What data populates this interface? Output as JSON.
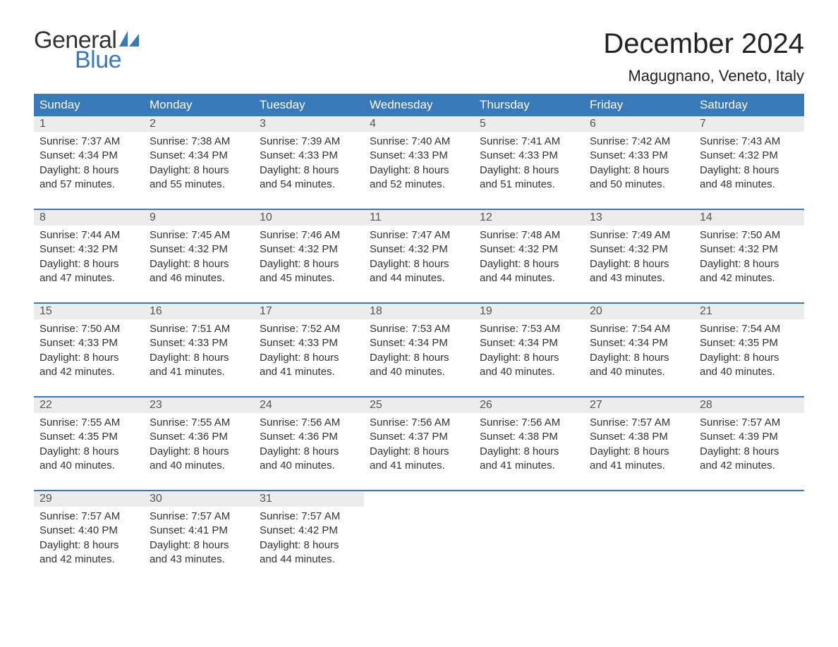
{
  "brand": {
    "word1": "General",
    "word2": "Blue"
  },
  "title": "December 2024",
  "location": "Magugnano, Veneto, Italy",
  "colors": {
    "header_bg": "#3a79b7",
    "header_text": "#ffffff",
    "daynum_bg": "#ececec",
    "daynum_text": "#555555",
    "body_text": "#333333",
    "accent_line": "#3a79b7",
    "page_bg": "#ffffff",
    "logo_blue": "#3a79b7"
  },
  "typography": {
    "title_fontsize_pt": 30,
    "location_fontsize_pt": 16,
    "header_fontsize_pt": 13,
    "daynum_fontsize_pt": 12,
    "detail_fontsize_pt": 11,
    "font_family": "Arial"
  },
  "day_headers": [
    "Sunday",
    "Monday",
    "Tuesday",
    "Wednesday",
    "Thursday",
    "Friday",
    "Saturday"
  ],
  "weeks": [
    [
      {
        "num": "1",
        "sunrise": "Sunrise: 7:37 AM",
        "sunset": "Sunset: 4:34 PM",
        "d1": "Daylight: 8 hours",
        "d2": "and 57 minutes."
      },
      {
        "num": "2",
        "sunrise": "Sunrise: 7:38 AM",
        "sunset": "Sunset: 4:34 PM",
        "d1": "Daylight: 8 hours",
        "d2": "and 55 minutes."
      },
      {
        "num": "3",
        "sunrise": "Sunrise: 7:39 AM",
        "sunset": "Sunset: 4:33 PM",
        "d1": "Daylight: 8 hours",
        "d2": "and 54 minutes."
      },
      {
        "num": "4",
        "sunrise": "Sunrise: 7:40 AM",
        "sunset": "Sunset: 4:33 PM",
        "d1": "Daylight: 8 hours",
        "d2": "and 52 minutes."
      },
      {
        "num": "5",
        "sunrise": "Sunrise: 7:41 AM",
        "sunset": "Sunset: 4:33 PM",
        "d1": "Daylight: 8 hours",
        "d2": "and 51 minutes."
      },
      {
        "num": "6",
        "sunrise": "Sunrise: 7:42 AM",
        "sunset": "Sunset: 4:33 PM",
        "d1": "Daylight: 8 hours",
        "d2": "and 50 minutes."
      },
      {
        "num": "7",
        "sunrise": "Sunrise: 7:43 AM",
        "sunset": "Sunset: 4:32 PM",
        "d1": "Daylight: 8 hours",
        "d2": "and 48 minutes."
      }
    ],
    [
      {
        "num": "8",
        "sunrise": "Sunrise: 7:44 AM",
        "sunset": "Sunset: 4:32 PM",
        "d1": "Daylight: 8 hours",
        "d2": "and 47 minutes."
      },
      {
        "num": "9",
        "sunrise": "Sunrise: 7:45 AM",
        "sunset": "Sunset: 4:32 PM",
        "d1": "Daylight: 8 hours",
        "d2": "and 46 minutes."
      },
      {
        "num": "10",
        "sunrise": "Sunrise: 7:46 AM",
        "sunset": "Sunset: 4:32 PM",
        "d1": "Daylight: 8 hours",
        "d2": "and 45 minutes."
      },
      {
        "num": "11",
        "sunrise": "Sunrise: 7:47 AM",
        "sunset": "Sunset: 4:32 PM",
        "d1": "Daylight: 8 hours",
        "d2": "and 44 minutes."
      },
      {
        "num": "12",
        "sunrise": "Sunrise: 7:48 AM",
        "sunset": "Sunset: 4:32 PM",
        "d1": "Daylight: 8 hours",
        "d2": "and 44 minutes."
      },
      {
        "num": "13",
        "sunrise": "Sunrise: 7:49 AM",
        "sunset": "Sunset: 4:32 PM",
        "d1": "Daylight: 8 hours",
        "d2": "and 43 minutes."
      },
      {
        "num": "14",
        "sunrise": "Sunrise: 7:50 AM",
        "sunset": "Sunset: 4:32 PM",
        "d1": "Daylight: 8 hours",
        "d2": "and 42 minutes."
      }
    ],
    [
      {
        "num": "15",
        "sunrise": "Sunrise: 7:50 AM",
        "sunset": "Sunset: 4:33 PM",
        "d1": "Daylight: 8 hours",
        "d2": "and 42 minutes."
      },
      {
        "num": "16",
        "sunrise": "Sunrise: 7:51 AM",
        "sunset": "Sunset: 4:33 PM",
        "d1": "Daylight: 8 hours",
        "d2": "and 41 minutes."
      },
      {
        "num": "17",
        "sunrise": "Sunrise: 7:52 AM",
        "sunset": "Sunset: 4:33 PM",
        "d1": "Daylight: 8 hours",
        "d2": "and 41 minutes."
      },
      {
        "num": "18",
        "sunrise": "Sunrise: 7:53 AM",
        "sunset": "Sunset: 4:34 PM",
        "d1": "Daylight: 8 hours",
        "d2": "and 40 minutes."
      },
      {
        "num": "19",
        "sunrise": "Sunrise: 7:53 AM",
        "sunset": "Sunset: 4:34 PM",
        "d1": "Daylight: 8 hours",
        "d2": "and 40 minutes."
      },
      {
        "num": "20",
        "sunrise": "Sunrise: 7:54 AM",
        "sunset": "Sunset: 4:34 PM",
        "d1": "Daylight: 8 hours",
        "d2": "and 40 minutes."
      },
      {
        "num": "21",
        "sunrise": "Sunrise: 7:54 AM",
        "sunset": "Sunset: 4:35 PM",
        "d1": "Daylight: 8 hours",
        "d2": "and 40 minutes."
      }
    ],
    [
      {
        "num": "22",
        "sunrise": "Sunrise: 7:55 AM",
        "sunset": "Sunset: 4:35 PM",
        "d1": "Daylight: 8 hours",
        "d2": "and 40 minutes."
      },
      {
        "num": "23",
        "sunrise": "Sunrise: 7:55 AM",
        "sunset": "Sunset: 4:36 PM",
        "d1": "Daylight: 8 hours",
        "d2": "and 40 minutes."
      },
      {
        "num": "24",
        "sunrise": "Sunrise: 7:56 AM",
        "sunset": "Sunset: 4:36 PM",
        "d1": "Daylight: 8 hours",
        "d2": "and 40 minutes."
      },
      {
        "num": "25",
        "sunrise": "Sunrise: 7:56 AM",
        "sunset": "Sunset: 4:37 PM",
        "d1": "Daylight: 8 hours",
        "d2": "and 41 minutes."
      },
      {
        "num": "26",
        "sunrise": "Sunrise: 7:56 AM",
        "sunset": "Sunset: 4:38 PM",
        "d1": "Daylight: 8 hours",
        "d2": "and 41 minutes."
      },
      {
        "num": "27",
        "sunrise": "Sunrise: 7:57 AM",
        "sunset": "Sunset: 4:38 PM",
        "d1": "Daylight: 8 hours",
        "d2": "and 41 minutes."
      },
      {
        "num": "28",
        "sunrise": "Sunrise: 7:57 AM",
        "sunset": "Sunset: 4:39 PM",
        "d1": "Daylight: 8 hours",
        "d2": "and 42 minutes."
      }
    ],
    [
      {
        "num": "29",
        "sunrise": "Sunrise: 7:57 AM",
        "sunset": "Sunset: 4:40 PM",
        "d1": "Daylight: 8 hours",
        "d2": "and 42 minutes."
      },
      {
        "num": "30",
        "sunrise": "Sunrise: 7:57 AM",
        "sunset": "Sunset: 4:41 PM",
        "d1": "Daylight: 8 hours",
        "d2": "and 43 minutes."
      },
      {
        "num": "31",
        "sunrise": "Sunrise: 7:57 AM",
        "sunset": "Sunset: 4:42 PM",
        "d1": "Daylight: 8 hours",
        "d2": "and 44 minutes."
      },
      null,
      null,
      null,
      null
    ]
  ]
}
